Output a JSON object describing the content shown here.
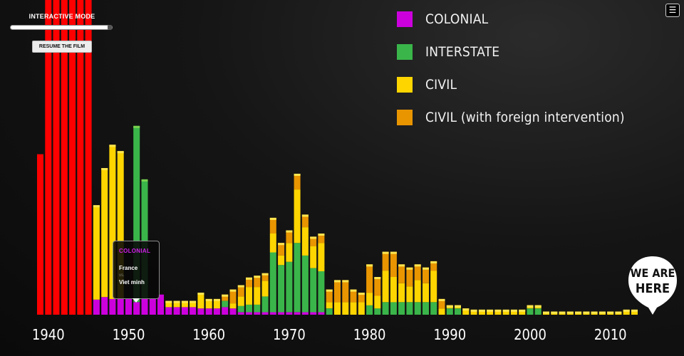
{
  "controls": {
    "mode_label": "INTERACTIVE MODE",
    "slider_progress": 1.0,
    "resume_label": "RESUME THE FILM",
    "menu_icon": "hamburger-menu-icon"
  },
  "badge": {
    "line1": "WE ARE",
    "line2": "HERE"
  },
  "tooltip": {
    "category": "COLONIAL",
    "side_a": "France",
    "vs": "vs.",
    "side_b": "Viet minh"
  },
  "colors": {
    "ww2": "#ff0000",
    "colonial": "#cc00dd",
    "interstate": "#3ab54a",
    "civil": "#ffd500",
    "civil_foreign": "#e89500",
    "cap_interstate": "#7ad24e",
    "cap_civil": "#ffe650"
  },
  "chart_data": {
    "type": "bar",
    "stacked": true,
    "x": [
      1939,
      1940,
      1941,
      1942,
      1943,
      1944,
      1945,
      1946,
      1947,
      1948,
      1949,
      1950,
      1951,
      1952,
      1953,
      1954,
      1955,
      1956,
      1957,
      1958,
      1959,
      1960,
      1961,
      1962,
      1963,
      1964,
      1965,
      1966,
      1967,
      1968,
      1969,
      1970,
      1971,
      1972,
      1973,
      1974,
      1975,
      1976,
      1977,
      1978,
      1979,
      1980,
      1981,
      1982,
      1983,
      1984,
      1985,
      1986,
      1987,
      1988,
      1989,
      1990,
      1991,
      1992,
      1993,
      1994,
      1995,
      1996,
      1997,
      1998,
      1999,
      2000,
      2001,
      2002,
      2003,
      2004,
      2005,
      2006,
      2007,
      2008,
      2009,
      2010,
      2011,
      2012,
      2013
    ],
    "series": [
      {
        "key": "ww2",
        "values": [
          255,
          500,
          500,
          500,
          500,
          500,
          500,
          0,
          0,
          0,
          0,
          0,
          0,
          0,
          0,
          0,
          0,
          0,
          0,
          0,
          0,
          0,
          0,
          0,
          0,
          0,
          0,
          0,
          0,
          0,
          0,
          0,
          0,
          0,
          0,
          0,
          0,
          0,
          0,
          0,
          0,
          0,
          0,
          0,
          0,
          0,
          0,
          0,
          0,
          0,
          0,
          0,
          0,
          0,
          0,
          0,
          0,
          0,
          0,
          0,
          0,
          0,
          0,
          0,
          0,
          0,
          0,
          0,
          0,
          0,
          0,
          0,
          0,
          0,
          0
        ]
      },
      {
        "key": "colonial",
        "values": [
          0,
          0,
          0,
          0,
          0,
          0,
          0,
          24,
          28,
          25,
          25,
          25,
          20,
          25,
          25,
          32,
          12,
          12,
          12,
          12,
          10,
          10,
          10,
          12,
          10,
          4,
          4,
          4,
          4,
          4,
          4,
          4,
          4,
          4,
          4,
          4,
          0,
          0,
          0,
          0,
          0,
          0,
          0,
          0,
          0,
          0,
          0,
          0,
          0,
          0,
          0,
          0,
          0,
          0,
          0,
          0,
          0,
          0,
          0,
          0,
          0,
          0,
          0,
          0,
          0,
          0,
          0,
          0,
          0,
          0,
          0,
          0,
          0,
          0,
          0
        ]
      },
      {
        "key": "interstate",
        "values": [
          0,
          0,
          0,
          0,
          0,
          0,
          0,
          0,
          0,
          0,
          0,
          0,
          280,
          190,
          0,
          0,
          0,
          0,
          0,
          0,
          0,
          0,
          0,
          10,
          0,
          10,
          12,
          12,
          25,
          95,
          75,
          80,
          110,
          90,
          70,
          65,
          10,
          0,
          0,
          0,
          0,
          15,
          10,
          20,
          20,
          20,
          20,
          20,
          20,
          20,
          0,
          10,
          10,
          0,
          0,
          0,
          0,
          0,
          0,
          0,
          0,
          10,
          10,
          0,
          0,
          0,
          0,
          0,
          0,
          0,
          0,
          0,
          0,
          0,
          0
        ]
      },
      {
        "key": "civil",
        "values": [
          0,
          0,
          0,
          0,
          0,
          0,
          0,
          150,
          205,
          245,
          235,
          0,
          0,
          0,
          0,
          0,
          10,
          10,
          10,
          10,
          25,
          15,
          15,
          0,
          8,
          15,
          28,
          28,
          25,
          30,
          15,
          30,
          85,
          45,
          35,
          45,
          10,
          20,
          20,
          20,
          20,
          20,
          20,
          50,
          40,
          30,
          25,
          35,
          30,
          50,
          10,
          5,
          5,
          10,
          8,
          8,
          8,
          8,
          8,
          8,
          8,
          5,
          5,
          5,
          5,
          5,
          5,
          5,
          5,
          5,
          5,
          5,
          5,
          8,
          8
        ]
      },
      {
        "key": "civil_foreign",
        "values": [
          0,
          0,
          0,
          0,
          0,
          0,
          0,
          0,
          0,
          0,
          0,
          0,
          0,
          0,
          0,
          0,
          0,
          0,
          0,
          0,
          0,
          0,
          0,
          10,
          22,
          18,
          15,
          18,
          12,
          25,
          20,
          20,
          25,
          20,
          15,
          15,
          20,
          35,
          35,
          20,
          15,
          45,
          30,
          30,
          40,
          30,
          30,
          25,
          25,
          15,
          15,
          0,
          0,
          0,
          0,
          0,
          0,
          0,
          0,
          0,
          0,
          0,
          0,
          0,
          0,
          0,
          0,
          0,
          0,
          0,
          0,
          0,
          0,
          0,
          0
        ]
      }
    ],
    "legend": [
      {
        "key": "colonial",
        "label": "COLONIAL"
      },
      {
        "key": "interstate",
        "label": "INTERSTATE"
      },
      {
        "key": "civil",
        "label": "CIVIL"
      },
      {
        "key": "civil_foreign",
        "label": "CIVIL (with foreign intervention)"
      }
    ],
    "legend_position": "top-right",
    "xticks": [
      1940,
      1950,
      1960,
      1970,
      1980,
      1990,
      2000,
      2010
    ],
    "xlim": [
      1938.5,
      2014
    ],
    "ylim": [
      0,
      500
    ],
    "grid": false
  }
}
